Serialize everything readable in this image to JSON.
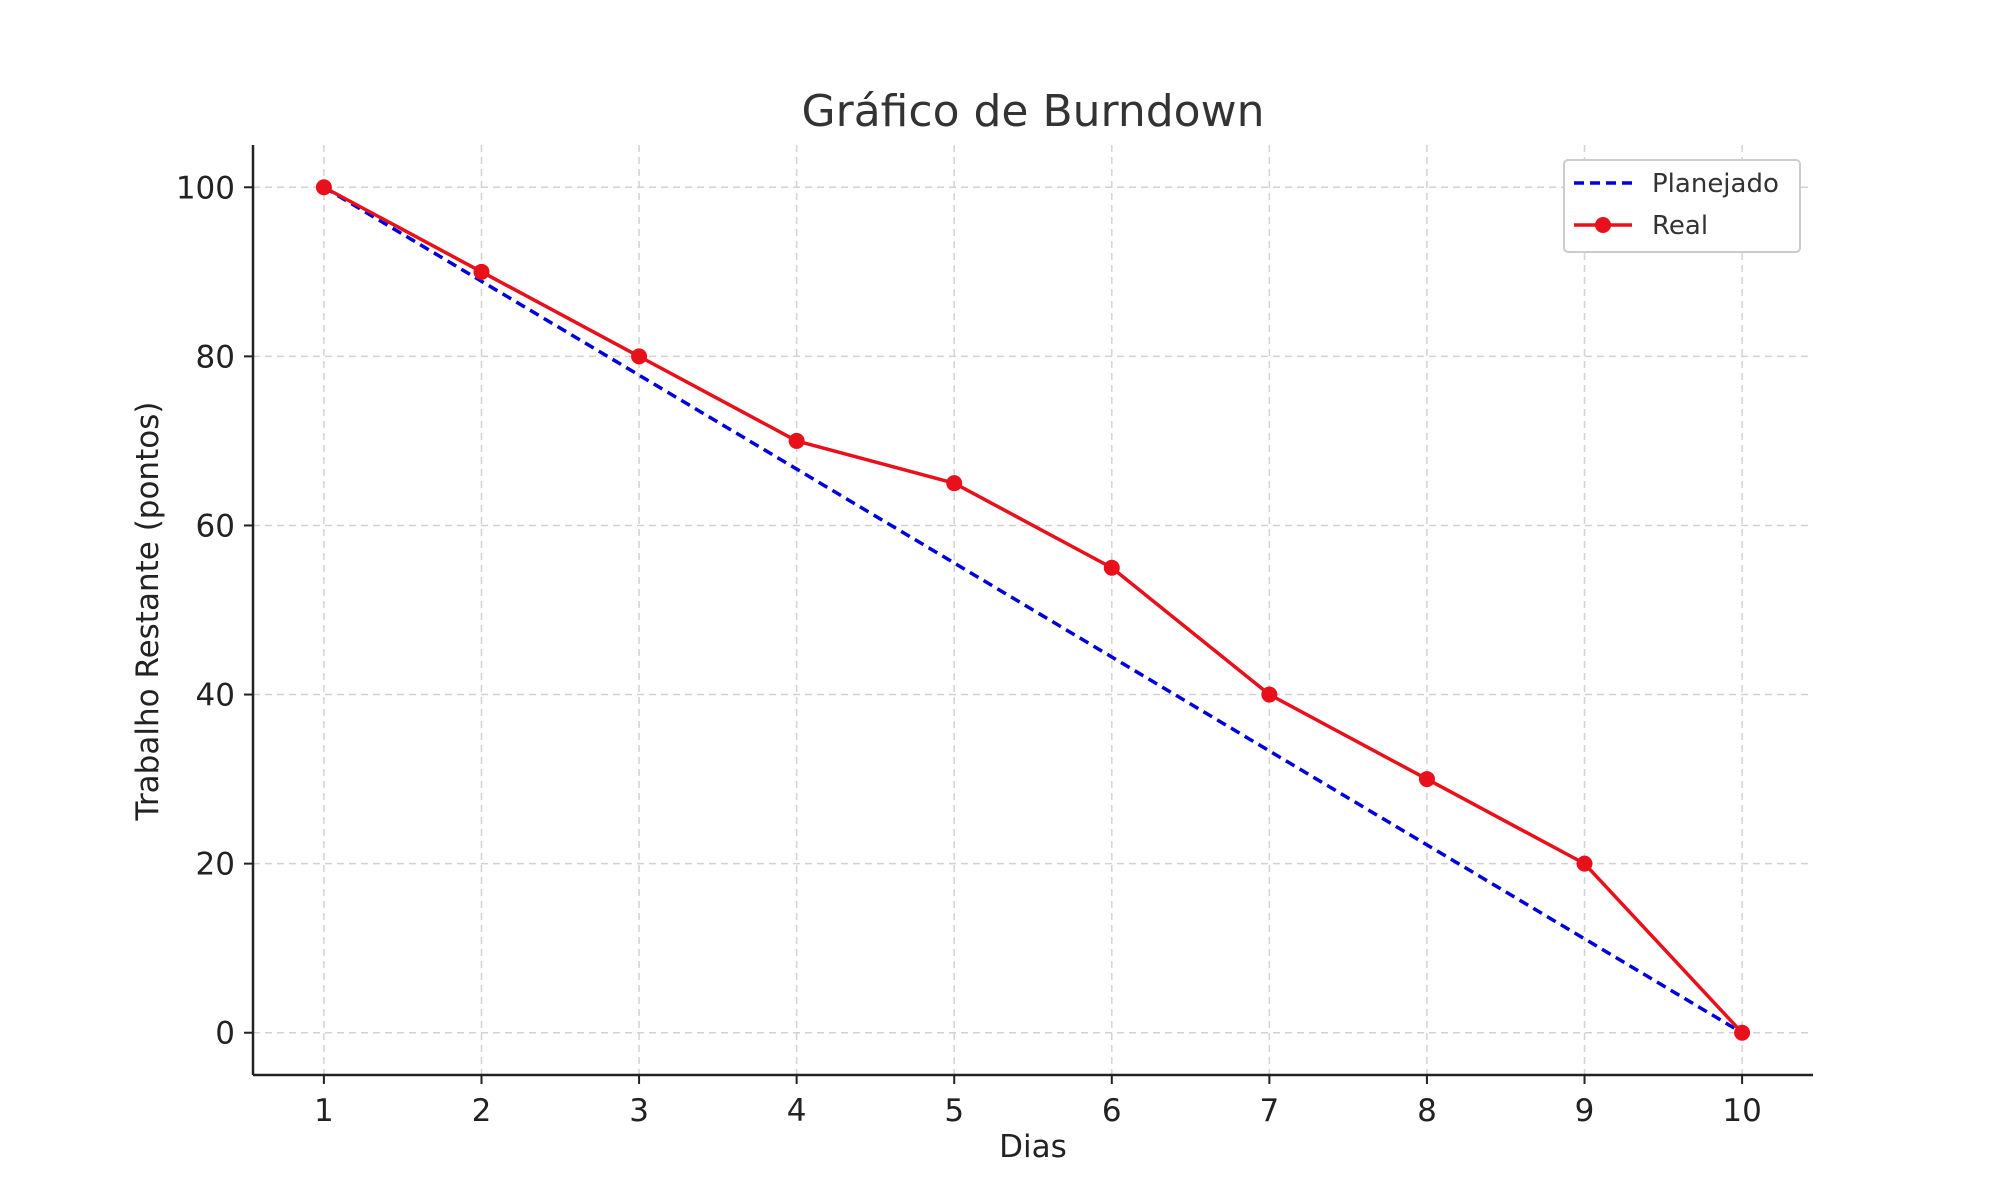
{
  "chart_data": {
    "type": "line",
    "title": "Gráfico de Burndown",
    "xlabel": "Dias",
    "ylabel": "Trabalho Restante (pontos)",
    "x": [
      1,
      2,
      3,
      4,
      5,
      6,
      7,
      8,
      9,
      10
    ],
    "xlim": [
      0.55,
      10.45
    ],
    "ylim": [
      -5,
      105
    ],
    "xticks": [
      1,
      2,
      3,
      4,
      5,
      6,
      7,
      8,
      9,
      10
    ],
    "yticks": [
      0,
      20,
      40,
      60,
      80,
      100
    ],
    "grid": true,
    "legend_position": "top-right",
    "series": [
      {
        "name": "Planejado",
        "style": "dashed",
        "marker": "none",
        "color": "#0000dd",
        "values": [
          100,
          88.89,
          77.78,
          66.67,
          55.56,
          44.44,
          33.33,
          22.22,
          11.11,
          0
        ]
      },
      {
        "name": "Real",
        "style": "solid",
        "marker": "circle",
        "color": "#e8101a",
        "values": [
          100,
          90,
          80,
          70,
          65,
          55,
          40,
          30,
          20,
          0
        ]
      }
    ]
  }
}
